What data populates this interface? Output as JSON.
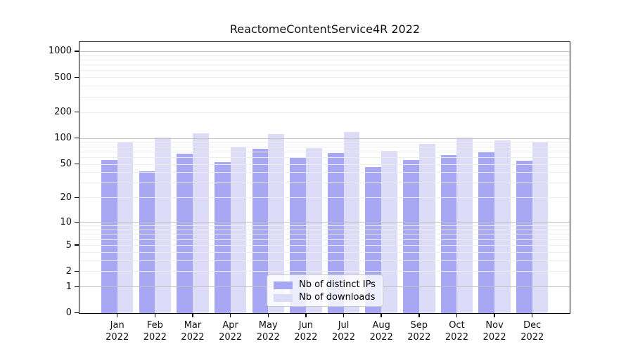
{
  "title": "ReactomeContentService4R 2022",
  "legend": {
    "items": [
      {
        "label": "Nb of distinct IPs",
        "color": "#a7a7f3"
      },
      {
        "label": "Nb of downloads",
        "color": "#dcdcf9"
      }
    ]
  },
  "axes": {
    "y_tick_labels": [
      "0",
      "1",
      "2",
      "5",
      "10",
      "20",
      "50",
      "100",
      "200",
      "500",
      "1000"
    ],
    "x_tick_labels": [
      {
        "month": "Jan",
        "year": "2022"
      },
      {
        "month": "Feb",
        "year": "2022"
      },
      {
        "month": "Mar",
        "year": "2022"
      },
      {
        "month": "Apr",
        "year": "2022"
      },
      {
        "month": "May",
        "year": "2022"
      },
      {
        "month": "Jun",
        "year": "2022"
      },
      {
        "month": "Jul",
        "year": "2022"
      },
      {
        "month": "Aug",
        "year": "2022"
      },
      {
        "month": "Sep",
        "year": "2022"
      },
      {
        "month": "Oct",
        "year": "2022"
      },
      {
        "month": "Nov",
        "year": "2022"
      },
      {
        "month": "Dec",
        "year": "2022"
      }
    ]
  },
  "colors": {
    "bar_ips": "#a7a7f3",
    "bar_downloads": "#dcdcf9",
    "grid_major": "#c2c2c2",
    "grid_minor": "#ececec",
    "spine": "#000000",
    "background": "#ffffff"
  },
  "chart_data": {
    "type": "bar",
    "title": "ReactomeContentService4R 2022",
    "categories": [
      "Jan 2022",
      "Feb 2022",
      "Mar 2022",
      "Apr 2022",
      "May 2022",
      "Jun 2022",
      "Jul 2022",
      "Aug 2022",
      "Sep 2022",
      "Oct 2022",
      "Nov 2022",
      "Dec 2022"
    ],
    "series": [
      {
        "name": "Nb of distinct IPs",
        "color": "#a7a7f3",
        "values": [
          55,
          41,
          66,
          52,
          75,
          60,
          67,
          46,
          55,
          63,
          68,
          54
        ]
      },
      {
        "name": "Nb of downloads",
        "color": "#dcdcf9",
        "values": [
          88,
          101,
          113,
          79,
          111,
          76,
          117,
          71,
          85,
          102,
          94,
          91
        ]
      }
    ],
    "yscale": "symlog-log1p",
    "yticks": [
      0,
      1,
      2,
      5,
      10,
      20,
      50,
      100,
      200,
      500,
      1000
    ],
    "ylim": [
      0,
      1270
    ],
    "grid": true,
    "legend_position": "lower center"
  }
}
